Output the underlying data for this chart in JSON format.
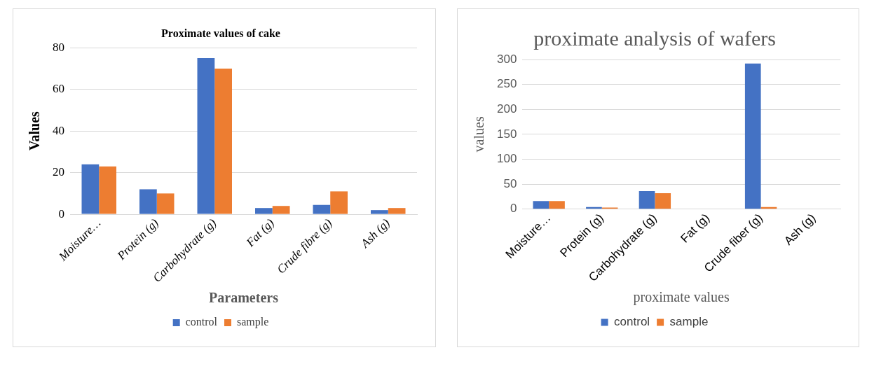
{
  "chart_data": [
    {
      "type": "bar",
      "title": "Proximate values of cake",
      "xlabel": "Parameters",
      "ylabel": "Values",
      "categories": [
        "Moisture…",
        "Protein (g)",
        "Carbohydrate (g)",
        "Fat (g)",
        "Crude fibre (g)",
        "Ash (g)"
      ],
      "series": [
        {
          "name": "control",
          "color": "#4472c4",
          "values": [
            24,
            12,
            75,
            3,
            4.5,
            2
          ]
        },
        {
          "name": "sample",
          "color": "#ed7d31",
          "values": [
            23,
            10,
            70,
            4,
            11,
            3
          ]
        }
      ],
      "ylim": [
        0,
        80
      ],
      "yticks": [
        0,
        20,
        40,
        60,
        80
      ],
      "grid": "y",
      "legend": "bottom"
    },
    {
      "type": "bar",
      "title": "proximate analysis of wafers",
      "xlabel": "proximate values",
      "ylabel": "values",
      "categories": [
        "Moisture…",
        "Protein (g)",
        "Carbohydrate (g)",
        "Fat (g)",
        "Crude fiber (g)",
        "Ash (g)"
      ],
      "series": [
        {
          "name": "control",
          "color": "#4472c4",
          "values": [
            16,
            4,
            36,
            null,
            292,
            null
          ]
        },
        {
          "name": "sample",
          "color": "#ed7d31",
          "values": [
            16,
            3,
            32,
            null,
            4,
            null
          ]
        }
      ],
      "ylim": [
        0,
        300
      ],
      "yticks": [
        0,
        50,
        100,
        150,
        200,
        250,
        300
      ],
      "grid": "y",
      "legend": "bottom"
    }
  ]
}
